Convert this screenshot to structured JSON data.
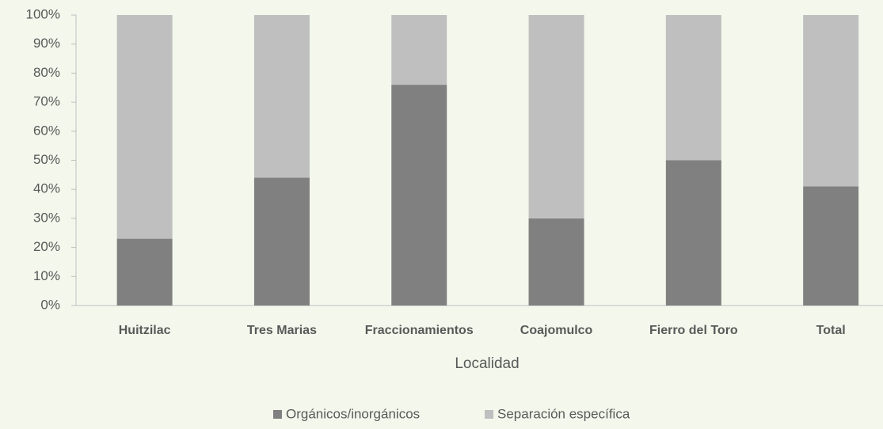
{
  "chart_data": {
    "type": "stacked_bar",
    "x_label": "Localidad",
    "categories": [
      "Huitzilac",
      "Tres Marias",
      "Fraccionamientos",
      "Coajomulco",
      "Fierro del Toro",
      "Total"
    ],
    "series": [
      {
        "name": "Orgánicos/inorgánicos",
        "color": "#808080",
        "values": [
          23,
          44,
          76,
          30,
          50,
          41
        ]
      },
      {
        "name": "Separación específica",
        "color": "#bfbfbf",
        "values": [
          77,
          56,
          24,
          70,
          50,
          59
        ]
      }
    ],
    "ylim": [
      0,
      100
    ],
    "yticks": [
      {
        "value": 0,
        "label": "0%"
      },
      {
        "value": 10,
        "label": "10%"
      },
      {
        "value": 20,
        "label": "20%"
      },
      {
        "value": 30,
        "label": "30%"
      },
      {
        "value": 40,
        "label": "40%"
      },
      {
        "value": 50,
        "label": "50%"
      },
      {
        "value": 60,
        "label": "60%"
      },
      {
        "value": 70,
        "label": "70%"
      },
      {
        "value": 80,
        "label": "80%"
      },
      {
        "value": 90,
        "label": "90%"
      },
      {
        "value": 100,
        "label": "100%"
      }
    ],
    "legend": "bottom"
  }
}
